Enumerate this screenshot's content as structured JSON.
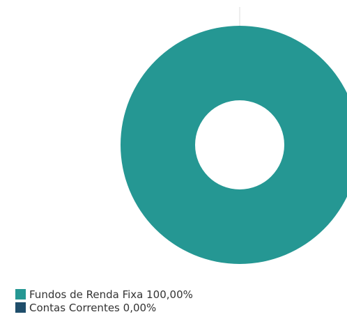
{
  "chart_data": {
    "type": "pie",
    "donut": true,
    "categories": [
      "Fundos de Renda Fixa",
      "Contas Correntes"
    ],
    "values": [
      100,
      0
    ],
    "value_labels": [
      "100,00%",
      "0,00%"
    ],
    "colors": [
      "#259793",
      "#1f4e6b"
    ],
    "legend": "bottom-left"
  }
}
